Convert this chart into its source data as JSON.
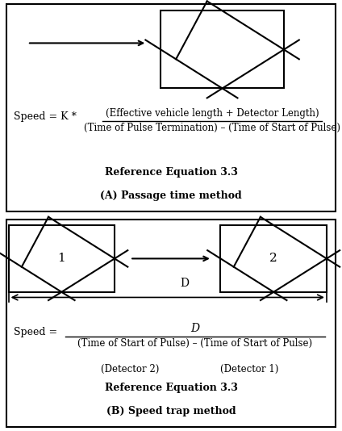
{
  "bg_color": "#ffffff",
  "border_color": "#000000",
  "panel_A": {
    "title": "(A) Passage time method",
    "ref_eq": "Reference Equation 3.3",
    "eq_numerator": "(Effective vehicle length + Detector Length)",
    "eq_denominator": "(Time of Pulse Termination) – (Time of Start of Pulse)",
    "eq_prefix": "Speed = K *"
  },
  "panel_B": {
    "title": "(B) Speed trap method",
    "ref_eq": "Reference Equation 3.3",
    "eq_numerator": "D",
    "eq_denominator": "(Time of Start of Pulse) – (Time of Start of Pulse)",
    "eq_sub_left": "(Detector 2)",
    "eq_sub_right": "(Detector 1)",
    "eq_prefix": "Speed =",
    "label1": "1",
    "label2": "2",
    "D_label": "D"
  }
}
